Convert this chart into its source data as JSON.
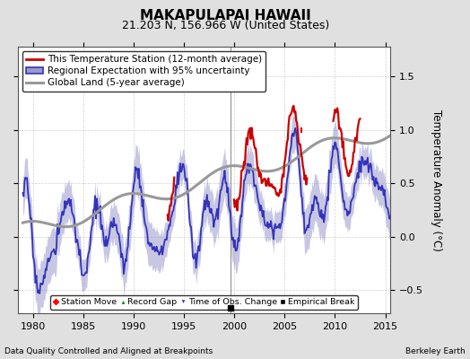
{
  "title": "MAKAPULAPAI HAWAII",
  "subtitle": "21.203 N, 156.966 W (United States)",
  "ylabel": "Temperature Anomaly (°C)",
  "xlabel_left": "Data Quality Controlled and Aligned at Breakpoints",
  "xlabel_right": "Berkeley Earth",
  "xlim": [
    1978.5,
    2015.5
  ],
  "ylim": [
    -0.72,
    1.78
  ],
  "yticks": [
    -0.5,
    0,
    0.5,
    1.0,
    1.5
  ],
  "xticks": [
    1980,
    1985,
    1990,
    1995,
    2000,
    2005,
    2010,
    2015
  ],
  "bg_color": "#e0e0e0",
  "plot_bg_color": "#ffffff",
  "regional_color": "#3333bb",
  "regional_fill_color": "#9999cc",
  "station_color": "#cc0000",
  "global_color": "#999999",
  "title_fontsize": 11,
  "subtitle_fontsize": 9,
  "legend_fontsize": 7.5,
  "tick_fontsize": 8,
  "empirical_break_year": 1999.6
}
